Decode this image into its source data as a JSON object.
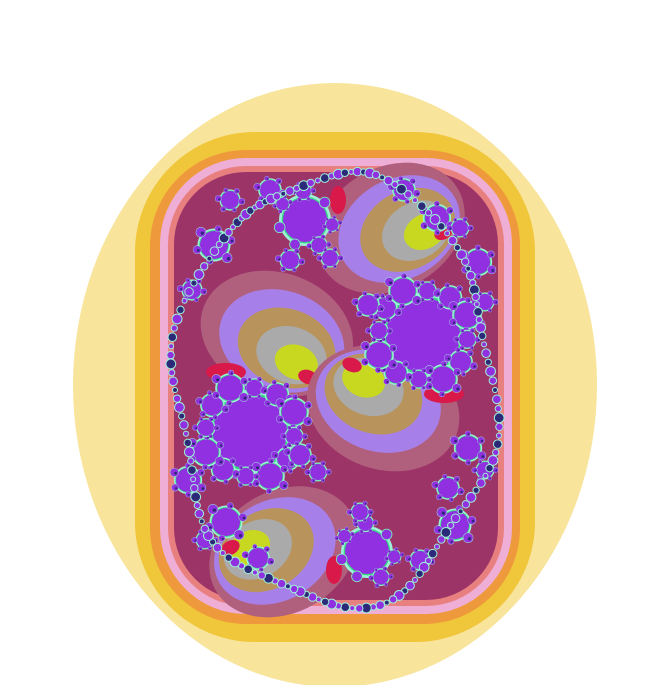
{
  "image": {
    "subject": "julia-set-fractal",
    "background": "#ffffff"
  },
  "palette": {
    "outer_cream": "#f8e49a",
    "outer_gold": "#f0c63a",
    "orange": "#ee9a3c",
    "pink": "#eeaed6",
    "salmon": "#e88080",
    "red": "#d8194a",
    "maroon": "#9c3468",
    "mauve": "#b0607c",
    "lavender": "#a77fe8",
    "tan": "#b8945c",
    "gray": "#aaaaaa",
    "lime": "#c8d820",
    "violet_core": "#9030e0",
    "green": "#34d884",
    "mint": "#9ff0d8",
    "navy": "#2c2a78"
  }
}
